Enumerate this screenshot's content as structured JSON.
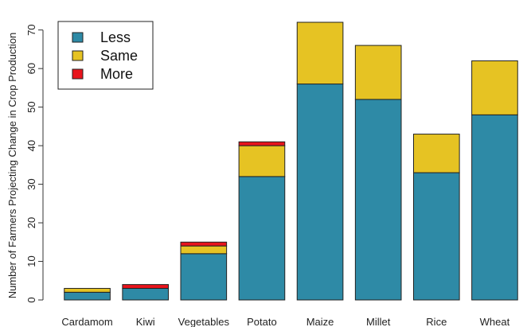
{
  "chart_data": {
    "type": "bar",
    "stacked": true,
    "categories": [
      "Cardamom",
      "Kiwi",
      "Vegetables",
      "Potato",
      "Maize",
      "Millet",
      "Rice",
      "Wheat"
    ],
    "series": [
      {
        "name": "Less",
        "values": [
          2,
          3,
          12,
          32,
          56,
          52,
          33,
          48
        ],
        "color": "#2e8aa6"
      },
      {
        "name": "Same",
        "values": [
          1,
          0,
          2,
          8,
          16,
          14,
          10,
          14
        ],
        "color": "#e6c323"
      },
      {
        "name": "More",
        "values": [
          0,
          1,
          1,
          1,
          0,
          0,
          0,
          0
        ],
        "color": "#e8141c"
      }
    ],
    "ylabel": "Number of Farmers Projecting Change in Crop Production",
    "xlabel": "",
    "ylim": [
      0,
      72
    ],
    "yticks": [
      0,
      10,
      20,
      30,
      40,
      50,
      60,
      70
    ],
    "legend_position": "top-left",
    "grid": false
  }
}
